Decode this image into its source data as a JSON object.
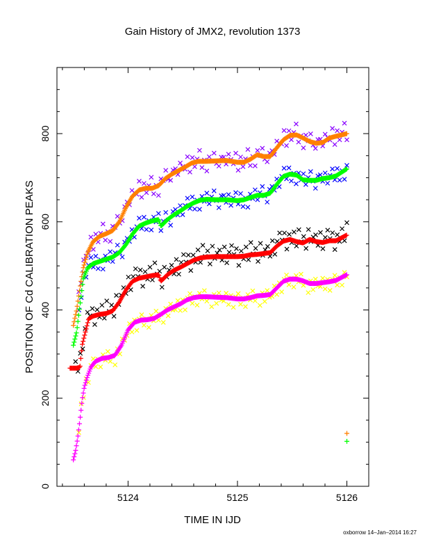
{
  "chart_data": {
    "type": "scatter",
    "title": "Gain History of JMX2, revolution 1373",
    "xlabel": "TIME IN IJD",
    "ylabel": "POSITION OF Cd CALIBRATION PEAKS",
    "xlim": [
      5123.35,
      5126.2
    ],
    "ylim": [
      0,
      950
    ],
    "x_ticks": [
      5124,
      5125,
      5126
    ],
    "y_ticks": [
      0,
      200,
      400,
      600,
      800
    ],
    "grid": false,
    "credit": "oxborrow 14–Jan–2014 16:27",
    "series": [
      {
        "color": "#ff8000",
        "marker": "+",
        "kind": "smooth",
        "points": [
          [
            5123.5,
            365
          ],
          [
            5123.53,
            400
          ],
          [
            5123.56,
            450
          ],
          [
            5123.59,
            495
          ],
          [
            5123.63,
            530
          ],
          [
            5123.68,
            555
          ],
          [
            5123.74,
            567
          ],
          [
            5123.8,
            573
          ],
          [
            5123.86,
            580
          ],
          [
            5123.92,
            600
          ],
          [
            5123.98,
            632
          ],
          [
            5124.04,
            658
          ],
          [
            5124.1,
            672
          ],
          [
            5124.16,
            676
          ],
          [
            5124.22,
            676
          ],
          [
            5124.28,
            682
          ],
          [
            5124.34,
            698
          ],
          [
            5124.4,
            708
          ],
          [
            5124.46,
            716
          ],
          [
            5124.52,
            724
          ],
          [
            5124.58,
            733
          ],
          [
            5124.64,
            737
          ],
          [
            5124.7,
            737
          ],
          [
            5124.8,
            738
          ],
          [
            5124.9,
            739
          ],
          [
            5125.0,
            735
          ],
          [
            5125.06,
            735
          ],
          [
            5125.12,
            742
          ],
          [
            5125.18,
            752
          ],
          [
            5125.24,
            748
          ],
          [
            5125.3,
            748
          ],
          [
            5125.36,
            768
          ],
          [
            5125.42,
            786
          ],
          [
            5125.48,
            796
          ],
          [
            5125.54,
            797
          ],
          [
            5125.6,
            790
          ],
          [
            5125.66,
            782
          ],
          [
            5125.72,
            778
          ],
          [
            5125.78,
            780
          ],
          [
            5125.84,
            790
          ],
          [
            5125.9,
            794
          ],
          [
            5126.0,
            800
          ]
        ]
      },
      {
        "color": "#00ff00",
        "marker": "+",
        "kind": "smooth",
        "points": [
          [
            5123.5,
            320
          ],
          [
            5123.53,
            350
          ],
          [
            5123.56,
            410
          ],
          [
            5123.59,
            470
          ],
          [
            5123.63,
            495
          ],
          [
            5123.68,
            505
          ],
          [
            5123.74,
            510
          ],
          [
            5123.8,
            515
          ],
          [
            5123.86,
            520
          ],
          [
            5123.92,
            530
          ],
          [
            5123.98,
            548
          ],
          [
            5124.04,
            572
          ],
          [
            5124.1,
            590
          ],
          [
            5124.16,
            597
          ],
          [
            5124.22,
            602
          ],
          [
            5124.28,
            605
          ],
          [
            5124.3,
            590
          ],
          [
            5124.36,
            605
          ],
          [
            5124.42,
            616
          ],
          [
            5124.48,
            625
          ],
          [
            5124.54,
            635
          ],
          [
            5124.6,
            643
          ],
          [
            5124.66,
            649
          ],
          [
            5124.72,
            651
          ],
          [
            5124.8,
            650
          ],
          [
            5124.9,
            650
          ],
          [
            5125.0,
            648
          ],
          [
            5125.06,
            650
          ],
          [
            5125.12,
            655
          ],
          [
            5125.18,
            660
          ],
          [
            5125.24,
            660
          ],
          [
            5125.3,
            665
          ],
          [
            5125.36,
            685
          ],
          [
            5125.42,
            703
          ],
          [
            5125.48,
            708
          ],
          [
            5125.54,
            706
          ],
          [
            5125.6,
            695
          ],
          [
            5125.66,
            694
          ],
          [
            5125.72,
            694
          ],
          [
            5125.78,
            698
          ],
          [
            5125.84,
            700
          ],
          [
            5125.9,
            704
          ],
          [
            5126.0,
            720
          ]
        ]
      },
      {
        "color": "#ff0000",
        "marker": "+",
        "kind": "smooth",
        "points": [
          [
            5123.47,
            268
          ],
          [
            5123.5,
            268
          ],
          [
            5123.53,
            268
          ],
          [
            5123.56,
            270
          ],
          [
            5123.58,
            320
          ],
          [
            5123.61,
            350
          ],
          [
            5123.64,
            380
          ],
          [
            5123.68,
            386
          ],
          [
            5123.74,
            390
          ],
          [
            5123.8,
            392
          ],
          [
            5123.86,
            398
          ],
          [
            5123.92,
            418
          ],
          [
            5123.98,
            445
          ],
          [
            5124.04,
            465
          ],
          [
            5124.1,
            472
          ],
          [
            5124.16,
            475
          ],
          [
            5124.22,
            478
          ],
          [
            5124.28,
            480
          ],
          [
            5124.3,
            465
          ],
          [
            5124.36,
            480
          ],
          [
            5124.42,
            490
          ],
          [
            5124.48,
            497
          ],
          [
            5124.54,
            505
          ],
          [
            5124.6,
            513
          ],
          [
            5124.66,
            518
          ],
          [
            5124.72,
            520
          ],
          [
            5124.8,
            521
          ],
          [
            5124.9,
            521
          ],
          [
            5125.0,
            521
          ],
          [
            5125.06,
            522
          ],
          [
            5125.12,
            525
          ],
          [
            5125.18,
            526
          ],
          [
            5125.24,
            528
          ],
          [
            5125.3,
            530
          ],
          [
            5125.36,
            545
          ],
          [
            5125.42,
            556
          ],
          [
            5125.48,
            560
          ],
          [
            5125.54,
            555
          ],
          [
            5125.6,
            552
          ],
          [
            5125.66,
            560
          ],
          [
            5125.72,
            555
          ],
          [
            5125.78,
            553
          ],
          [
            5125.84,
            557
          ],
          [
            5125.9,
            557
          ],
          [
            5126.0,
            570
          ]
        ]
      },
      {
        "color": "#ff00ff",
        "marker": "+",
        "kind": "smooth",
        "points": [
          [
            5123.5,
            60
          ],
          [
            5123.52,
            80
          ],
          [
            5123.54,
            110
          ],
          [
            5123.56,
            150
          ],
          [
            5123.58,
            195
          ],
          [
            5123.6,
            225
          ],
          [
            5123.63,
            250
          ],
          [
            5123.66,
            270
          ],
          [
            5123.7,
            283
          ],
          [
            5123.76,
            290
          ],
          [
            5123.82,
            292
          ],
          [
            5123.88,
            297
          ],
          [
            5123.94,
            320
          ],
          [
            5124.0,
            355
          ],
          [
            5124.06,
            372
          ],
          [
            5124.12,
            377
          ],
          [
            5124.18,
            378
          ],
          [
            5124.24,
            381
          ],
          [
            5124.3,
            390
          ],
          [
            5124.36,
            400
          ],
          [
            5124.42,
            407
          ],
          [
            5124.48,
            414
          ],
          [
            5124.54,
            423
          ],
          [
            5124.6,
            428
          ],
          [
            5124.66,
            430
          ],
          [
            5124.72,
            430
          ],
          [
            5124.8,
            429
          ],
          [
            5124.9,
            428
          ],
          [
            5125.0,
            425
          ],
          [
            5125.06,
            425
          ],
          [
            5125.12,
            428
          ],
          [
            5125.18,
            432
          ],
          [
            5125.24,
            433
          ],
          [
            5125.3,
            435
          ],
          [
            5125.36,
            450
          ],
          [
            5125.42,
            465
          ],
          [
            5125.48,
            470
          ],
          [
            5125.54,
            470
          ],
          [
            5125.6,
            466
          ],
          [
            5125.66,
            460
          ],
          [
            5125.72,
            460
          ],
          [
            5125.78,
            462
          ],
          [
            5125.84,
            464
          ],
          [
            5125.9,
            467
          ],
          [
            5126.0,
            480
          ]
        ]
      },
      {
        "color": "#8800ff",
        "marker": "x",
        "kind": "scatter",
        "center": "#ff8000",
        "offset": [
          8,
          -8,
          15,
          4,
          -5,
          20,
          -18,
          12,
          -10,
          6,
          25,
          -14,
          3,
          -22,
          10,
          0,
          18,
          -6,
          -12,
          8
        ]
      },
      {
        "color": "#0000ff",
        "marker": "x",
        "kind": "scatter",
        "center": "#00ff00",
        "offset": [
          10,
          -6,
          12,
          -12,
          5,
          18,
          -8,
          15,
          -15,
          3,
          -20,
          8,
          -4,
          14,
          -10,
          6,
          20,
          -2,
          -18,
          9
        ]
      },
      {
        "color": "#000000",
        "marker": "x",
        "kind": "scatter",
        "center": "#ff0000",
        "offset": [
          15,
          -8,
          22,
          -14,
          10,
          25,
          5,
          18,
          -20,
          12,
          -6,
          20,
          -10,
          28,
          2,
          14,
          -16,
          24,
          -4,
          8
        ]
      },
      {
        "color": "#ffff00",
        "marker": "x",
        "kind": "scatter",
        "center": "#ff00ff",
        "offset": [
          -8,
          10,
          -15,
          6,
          -20,
          4,
          12,
          -12,
          2,
          -18,
          8,
          -5,
          14,
          -10,
          0,
          -22,
          6,
          -14,
          10,
          -6
        ]
      },
      {
        "color": "#ff8000",
        "marker": "+",
        "kind": "single",
        "points": [
          [
            5126.0,
            120
          ]
        ]
      },
      {
        "color": "#00ff00",
        "marker": "+",
        "kind": "single",
        "points": [
          [
            5126.0,
            102
          ]
        ]
      }
    ]
  }
}
